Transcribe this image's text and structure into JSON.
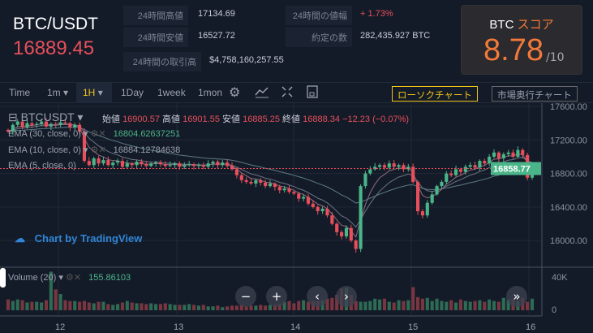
{
  "header": {
    "pair": "BTC/USDT",
    "price": "16889.45",
    "stats": [
      {
        "label": "24時間高値",
        "value": "17134.69"
      },
      {
        "label": "24時間安値",
        "value": "16527.72"
      },
      {
        "label": "24時間の取引高",
        "value": "$4,758,160,257.55"
      },
      {
        "label": "24時間の値幅",
        "value": "+ 1.73%"
      },
      {
        "label": "約定の数",
        "value": "282,435.927 BTC"
      }
    ]
  },
  "score": {
    "asset": "BTC",
    "label": "スコア",
    "value": "8.78",
    "max": "/10"
  },
  "toolbar": {
    "time": "Time",
    "intervals": [
      "1m",
      "1H",
      "1Day",
      "1week",
      "1mon"
    ],
    "selected": "1H",
    "candle_chart": "ローソクチャート",
    "depth_chart": "市場奥行チャート"
  },
  "legend": {
    "symbol": "BTCUSDT",
    "open_label": "始値",
    "open": "16900.57",
    "high_label": "高値",
    "high": "16901.55",
    "low_label": "安値",
    "low": "16885.25",
    "close_label": "終値",
    "close": "16888.34",
    "change": "−12.23 (−0.07%)",
    "ema30": "EMA (30, close, 0)",
    "ema30_value": "16804.62637251",
    "ema10": "EMA (10, close, 0)",
    "ema10_value": "16884.12784638",
    "ema5": "EMA (5, close, 0)",
    "volume": "Volume (20)",
    "volume_value": "155.86103"
  },
  "watermark": "Chart by TradingView",
  "colors": {
    "up": "#4bb58a",
    "down": "#e84f5b",
    "accent": "#f0c419",
    "score": "#f2793a"
  },
  "chart_data": {
    "type": "candlestick",
    "y_ticks": [
      "17600.00",
      "17200.00",
      "16800.00",
      "16400.00",
      "16000.00"
    ],
    "ylim": [
      15800,
      17700
    ],
    "last_price": "16858.77",
    "x_ticks": [
      "12",
      "13",
      "14",
      "15",
      "16"
    ],
    "volume_ticks": [
      "40K",
      "0"
    ],
    "close": [
      17300,
      17380,
      17420,
      17350,
      17400,
      17380,
      17390,
      17420,
      17360,
      17390,
      17380,
      17410,
      17400,
      17350,
      17380,
      17300,
      16950,
      16900,
      16980,
      16920,
      16960,
      16900,
      16930,
      16950,
      16880,
      16920,
      16900,
      16940,
      16910,
      16890,
      16920,
      16930,
      16910,
      16890,
      16900,
      16920,
      16880,
      16900,
      16910,
      16890,
      16900,
      16880,
      16920,
      16940,
      16900,
      16930,
      16890,
      16850,
      16780,
      16720,
      16700,
      16680,
      16720,
      16690,
      16650,
      16680,
      16640,
      16600,
      16620,
      16580,
      16560,
      16500,
      16520,
      16440,
      16400,
      16350,
      16380,
      16300,
      16200,
      16100,
      16050,
      16150,
      16000,
      15900,
      16650,
      16800,
      16850,
      16880,
      16900,
      16870,
      16920,
      16880,
      16900,
      16850,
      16880,
      16700,
      16350,
      16300,
      16450,
      16550,
      16650,
      16700,
      16800,
      16780,
      16850,
      16820,
      16880,
      16900,
      16870,
      16950,
      16920,
      17000,
      17050,
      16980,
      17030,
      17050,
      17000,
      17080,
      17020,
      16750,
      16858.77
    ],
    "volume_k": [
      14,
      12,
      14,
      13,
      10,
      11,
      11,
      10,
      13,
      50,
      27,
      21,
      13,
      12,
      12,
      11,
      12,
      10,
      9,
      11,
      11,
      8,
      7,
      8,
      10,
      12,
      10,
      9,
      9,
      8,
      9,
      8,
      8,
      9,
      8,
      7,
      7,
      7,
      8,
      7,
      6,
      7,
      5,
      5,
      6,
      4,
      5,
      6,
      6,
      7,
      5,
      6,
      6,
      7,
      6,
      7,
      7,
      8,
      11,
      12,
      9,
      12,
      13,
      11,
      12,
      12,
      13,
      15,
      16,
      20,
      28,
      29,
      20,
      12,
      11,
      11,
      12,
      15,
      14,
      15,
      11,
      10,
      13,
      12,
      13,
      30,
      17,
      15,
      16,
      12,
      15,
      12,
      11,
      13,
      10,
      14,
      12,
      11,
      12,
      13,
      11,
      14,
      12,
      11,
      16,
      14,
      15,
      12,
      16,
      11,
      15
    ]
  }
}
